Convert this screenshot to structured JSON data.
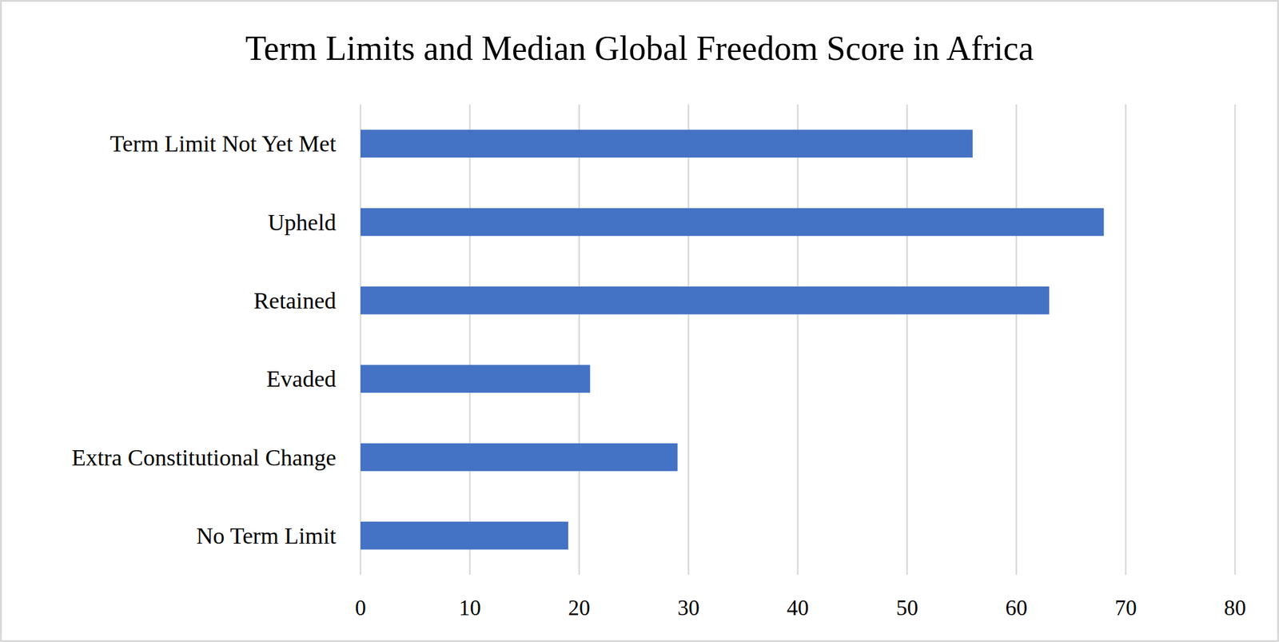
{
  "chart_data": {
    "type": "bar",
    "title": "Term Limits and Median Global Freedom Score in Africa",
    "orientation": "horizontal",
    "categories": [
      "Term Limit Not Yet Met",
      "Upheld",
      "Retained",
      "Evaded",
      "Extra Constitutional Change",
      "No Term Limit"
    ],
    "values": [
      56,
      68,
      63,
      21,
      29,
      19
    ],
    "color": "#4472c4",
    "xlim": [
      0,
      80
    ],
    "xticks": [
      0,
      10,
      20,
      30,
      40,
      50,
      60,
      70,
      80
    ],
    "grid": true
  }
}
